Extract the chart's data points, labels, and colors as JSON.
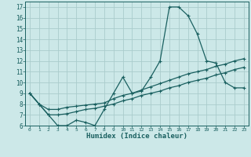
{
  "xlabel": "Humidex (Indice chaleur)",
  "background_color": "#cce8e8",
  "grid_color": "#aacccc",
  "line_color": "#1a6060",
  "xlim": [
    -0.5,
    23.5
  ],
  "ylim": [
    6,
    17.5
  ],
  "xticks": [
    0,
    1,
    2,
    3,
    4,
    5,
    6,
    7,
    8,
    9,
    10,
    11,
    12,
    13,
    14,
    15,
    16,
    17,
    18,
    19,
    20,
    21,
    22,
    23
  ],
  "yticks": [
    6,
    7,
    8,
    9,
    10,
    11,
    12,
    13,
    14,
    15,
    16,
    17
  ],
  "s1_x": [
    0,
    1,
    2,
    3,
    4,
    5,
    6,
    7,
    8,
    9,
    10,
    11,
    12,
    13,
    14,
    15,
    16,
    17,
    18,
    19,
    20,
    21,
    22,
    23
  ],
  "s1_y": [
    9.0,
    8.0,
    7.0,
    6.0,
    6.0,
    6.5,
    6.3,
    6.0,
    7.5,
    9.0,
    10.5,
    9.0,
    9.2,
    10.5,
    12.0,
    17.0,
    17.0,
    16.2,
    14.5,
    12.0,
    11.8,
    10.0,
    9.5,
    9.5
  ],
  "s2_x": [
    0,
    1,
    2,
    3,
    4,
    5,
    6,
    7,
    8,
    9,
    10,
    11,
    12,
    13,
    14,
    15,
    16,
    17,
    18,
    19,
    20,
    21,
    22,
    23
  ],
  "s2_y": [
    9.0,
    8.0,
    7.5,
    7.5,
    7.7,
    7.8,
    7.9,
    8.0,
    8.1,
    8.5,
    8.8,
    9.0,
    9.3,
    9.6,
    9.9,
    10.2,
    10.5,
    10.8,
    11.0,
    11.2,
    11.5,
    11.7,
    12.0,
    12.2
  ],
  "s3_x": [
    0,
    1,
    2,
    3,
    4,
    5,
    6,
    7,
    8,
    9,
    10,
    11,
    12,
    13,
    14,
    15,
    16,
    17,
    18,
    19,
    20,
    21,
    22,
    23
  ],
  "s3_y": [
    9.0,
    8.0,
    7.0,
    7.0,
    7.1,
    7.3,
    7.5,
    7.6,
    7.8,
    8.0,
    8.3,
    8.5,
    8.8,
    9.0,
    9.2,
    9.5,
    9.7,
    10.0,
    10.2,
    10.4,
    10.7,
    10.9,
    11.2,
    11.4
  ]
}
